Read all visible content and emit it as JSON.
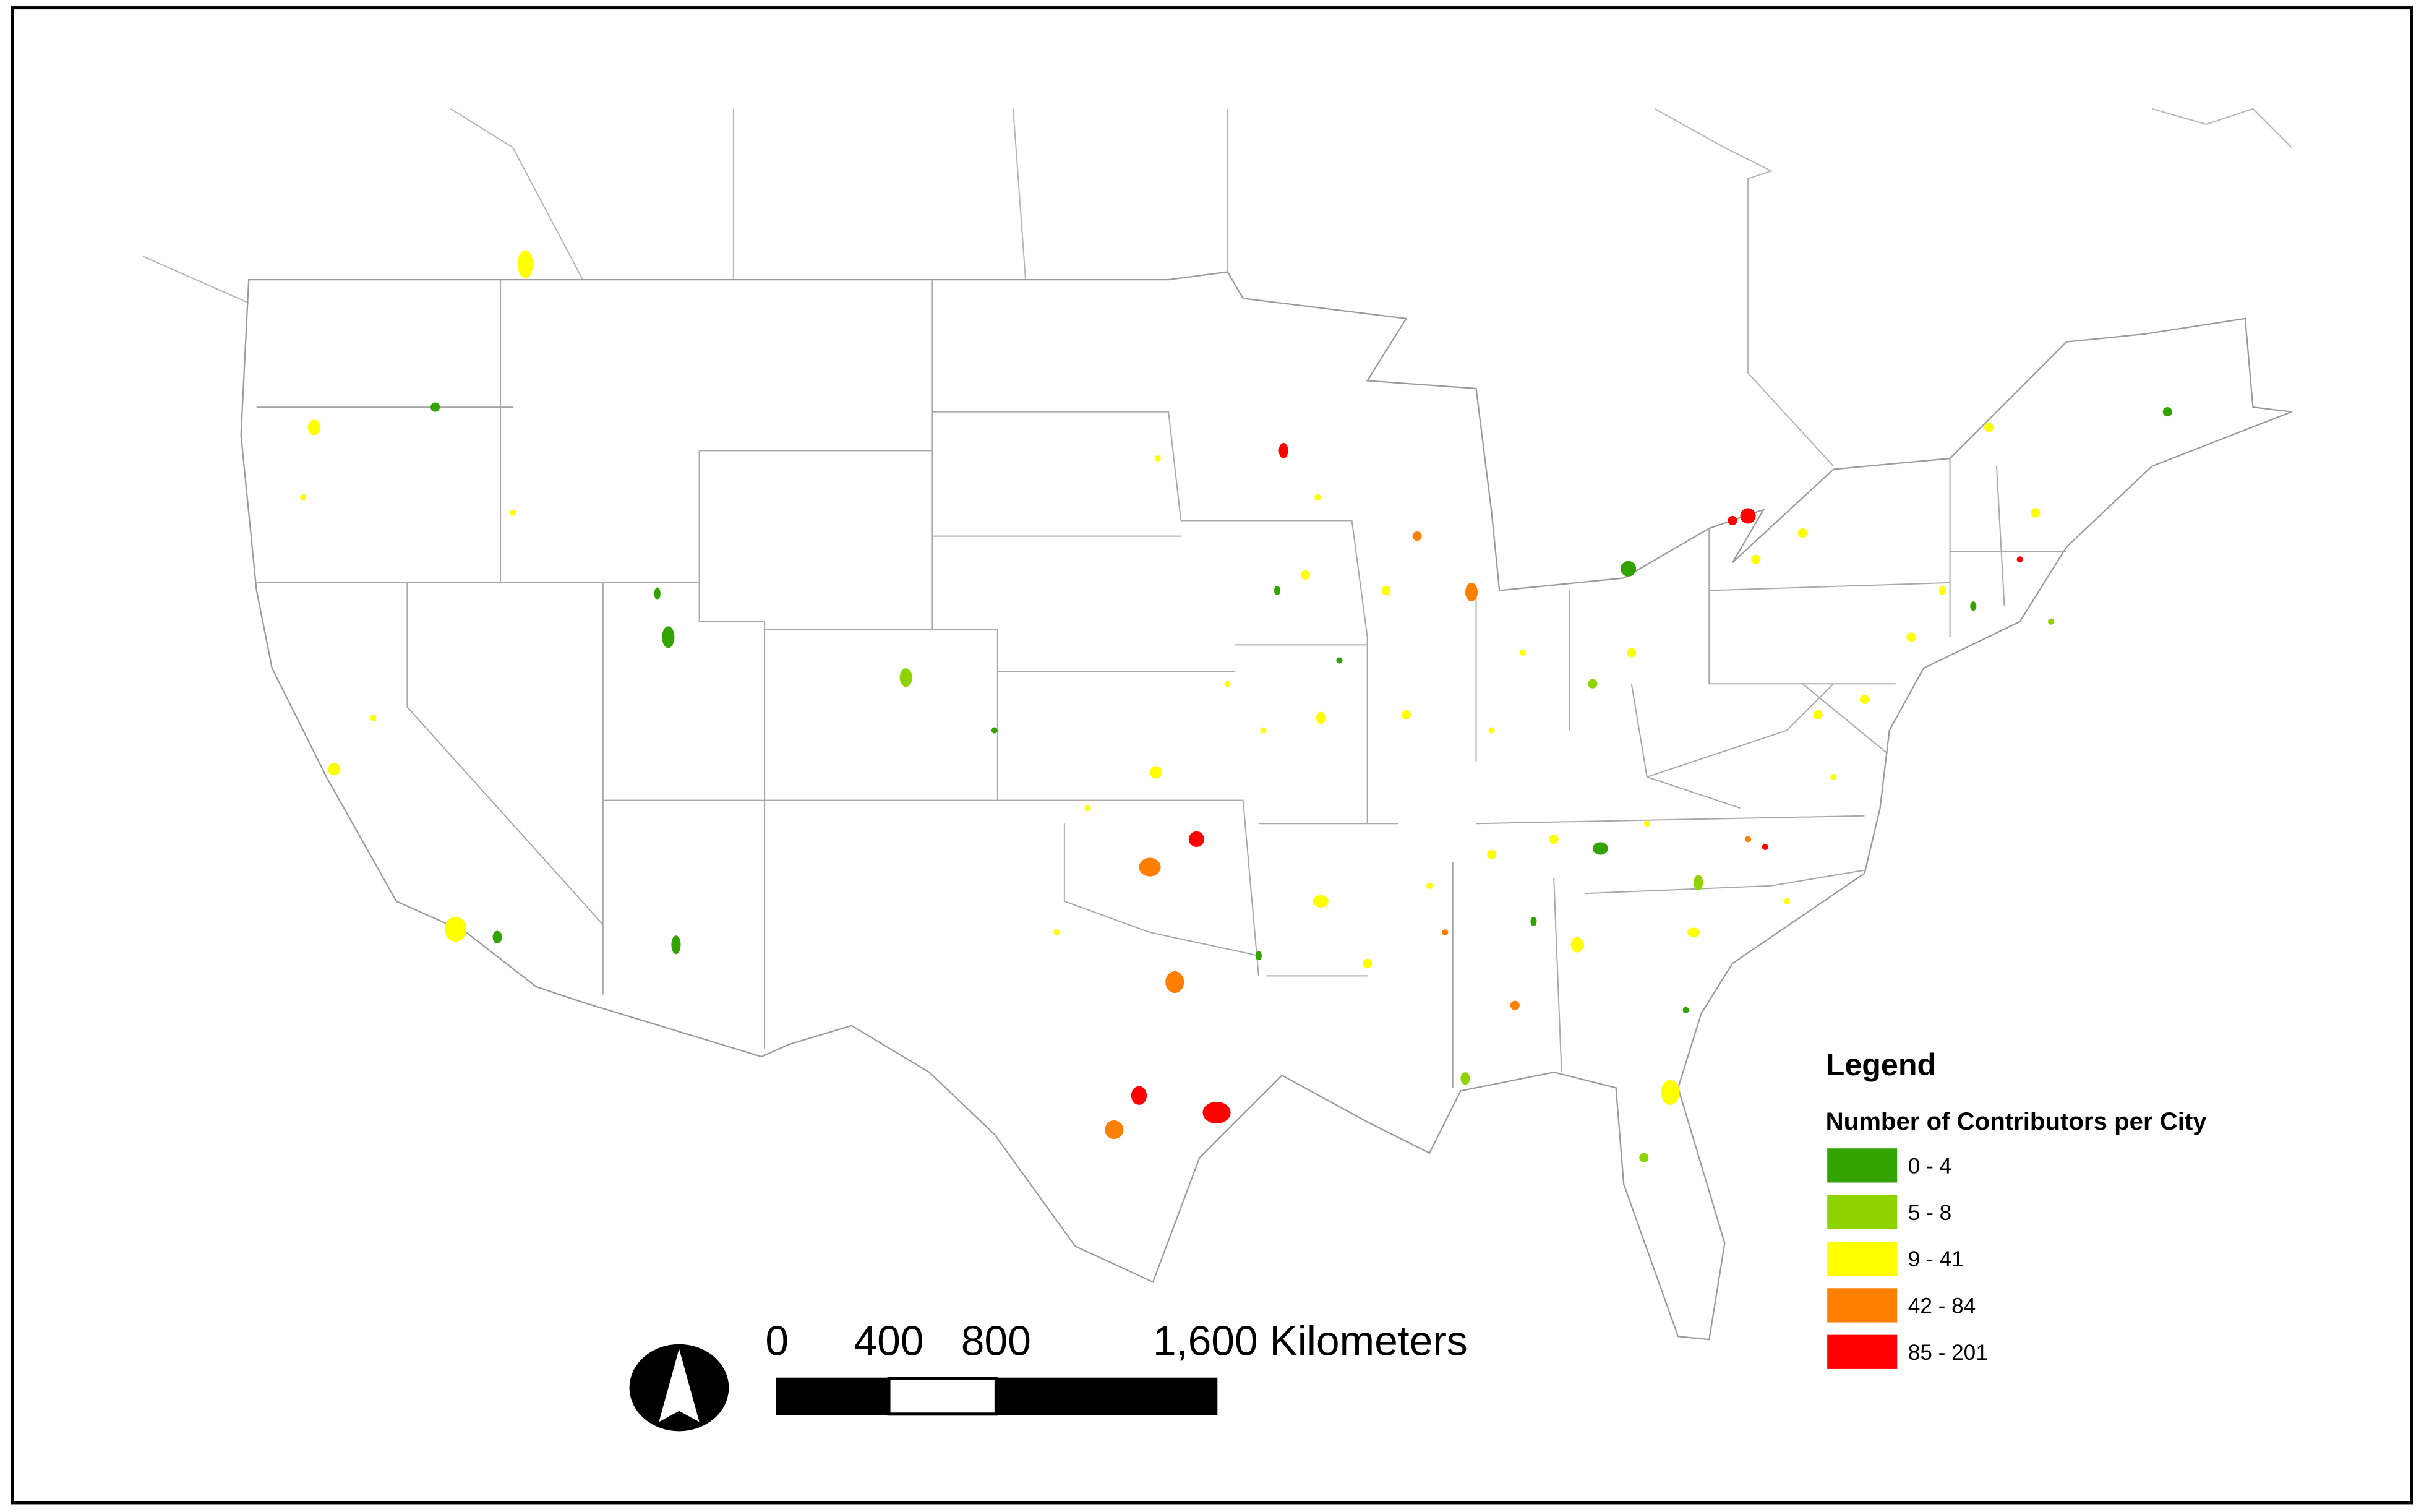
{
  "legend": {
    "title": "Legend",
    "subtitle": "Number of Contributors per City",
    "items": [
      {
        "label": "0 - 4",
        "color": "#33a300"
      },
      {
        "label": "5 - 8",
        "color": "#8fd400"
      },
      {
        "label": "9 - 41",
        "color": "#ffff00"
      },
      {
        "label": "42 - 84",
        "color": "#ff8000"
      },
      {
        "label": "85 - 201",
        "color": "#ff0000"
      }
    ]
  },
  "scale_bar": {
    "labels": [
      "0",
      "400",
      "800",
      "1,600 Kilometers"
    ]
  }
}
